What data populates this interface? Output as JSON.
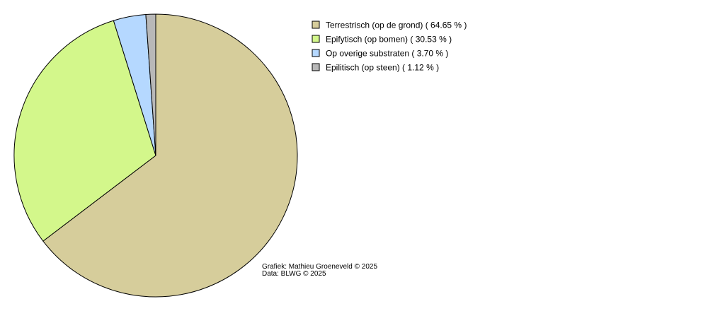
{
  "chart_data": {
    "type": "pie",
    "title": "",
    "slices": [
      {
        "label": "Terrestrisch (op de grond)",
        "value": 64.65,
        "legend": "Terrestrisch (op de grond) ( 64.65 % )",
        "color": "#d6cd9b"
      },
      {
        "label": "Epifytisch (op bomen)",
        "value": 30.53,
        "legend": "Epifytisch (op bomen) ( 30.53 % )",
        "color": "#d3f78b"
      },
      {
        "label": "Op overige substraten",
        "value": 3.7,
        "legend": "Op overige substraten ( 3.70 % )",
        "color": "#b5d8ff"
      },
      {
        "label": "Epilitisch (op steen)",
        "value": 1.12,
        "legend": "Epilitisch (op steen) ( 1.12 % )",
        "color": "#b8b8b8"
      }
    ],
    "start_angle": "top",
    "direction": "clockwise",
    "legend_position": "top-right"
  },
  "credits": {
    "line1": "Grafiek: Mathieu Groeneveld © 2025",
    "line2": "Data: BLWG © 2025"
  }
}
